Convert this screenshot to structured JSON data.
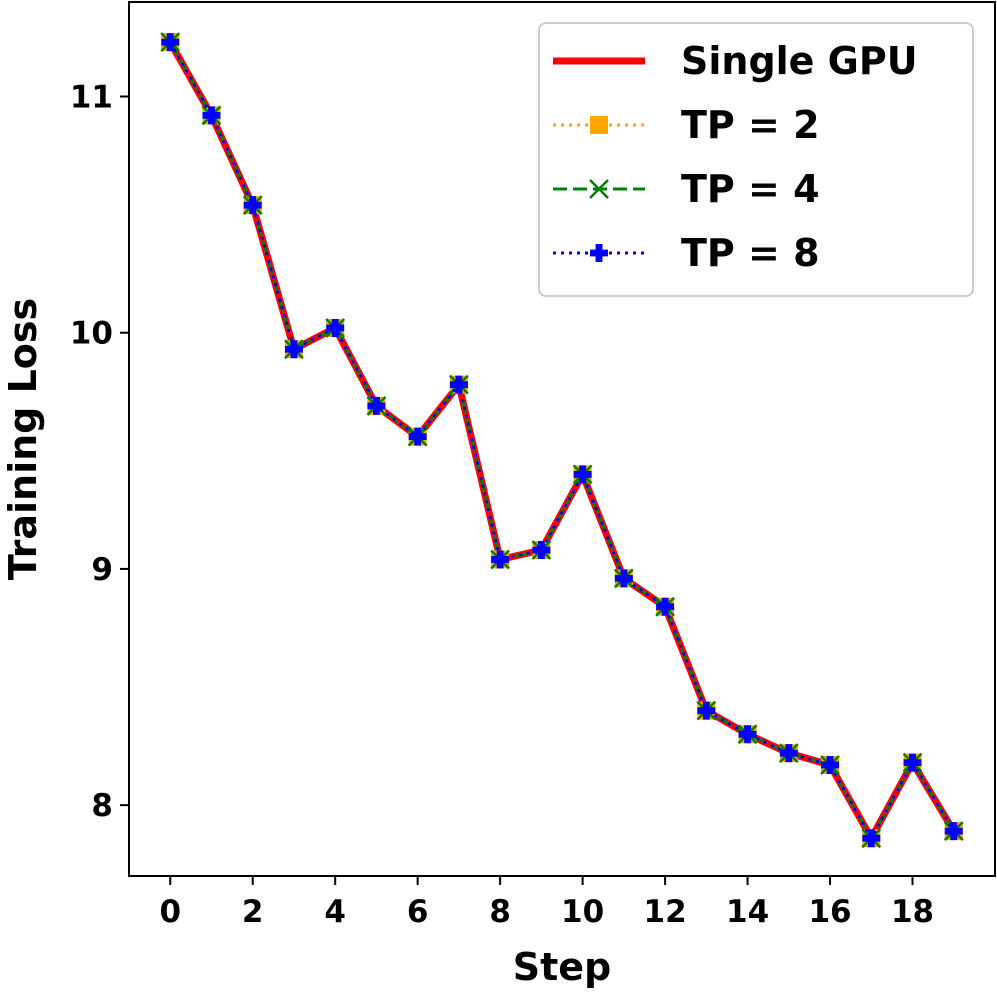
{
  "chart_data": {
    "type": "line",
    "title": "",
    "xlabel": "Step",
    "ylabel": "Training Loss",
    "xlim": [
      -1.0,
      20.0
    ],
    "ylim": [
      7.7,
      11.4
    ],
    "xticks": [
      0,
      2,
      4,
      6,
      8,
      10,
      12,
      14,
      16,
      18
    ],
    "xtick_labels": [
      "0",
      "2",
      "4",
      "6",
      "8",
      "10",
      "12",
      "14",
      "16",
      "18"
    ],
    "yticks": [
      8,
      9,
      10,
      11
    ],
    "ytick_labels": [
      "8",
      "9",
      "10",
      "11"
    ],
    "grid": false,
    "legend_position": "top-right",
    "x": [
      0,
      1,
      2,
      3,
      4,
      5,
      6,
      7,
      8,
      9,
      10,
      11,
      12,
      13,
      14,
      15,
      16,
      17,
      18,
      19
    ],
    "series": [
      {
        "name": "Single GPU",
        "color": "#ff0000",
        "style": "solid",
        "marker": "none",
        "values": [
          11.23,
          10.92,
          10.54,
          9.93,
          10.02,
          9.69,
          9.56,
          9.78,
          9.04,
          9.08,
          9.4,
          8.96,
          8.84,
          8.4,
          8.3,
          8.22,
          8.17,
          7.86,
          8.18,
          7.89
        ]
      },
      {
        "name": "TP = 2",
        "color": "#ffa500",
        "style": "dotted",
        "marker": "square",
        "values": [
          11.23,
          10.92,
          10.54,
          9.93,
          10.02,
          9.69,
          9.56,
          9.78,
          9.04,
          9.08,
          9.4,
          8.96,
          8.84,
          8.4,
          8.3,
          8.22,
          8.17,
          7.86,
          8.18,
          7.89
        ]
      },
      {
        "name": "TP = 4",
        "color": "#008000",
        "style": "dashed",
        "marker": "x",
        "values": [
          11.23,
          10.92,
          10.54,
          9.93,
          10.02,
          9.69,
          9.56,
          9.78,
          9.04,
          9.08,
          9.4,
          8.96,
          8.84,
          8.4,
          8.3,
          8.22,
          8.17,
          7.86,
          8.18,
          7.89
        ]
      },
      {
        "name": "TP = 8",
        "color": "#0000ff",
        "style": "dotted",
        "marker": "plus",
        "values": [
          11.23,
          10.92,
          10.54,
          9.93,
          10.02,
          9.69,
          9.56,
          9.78,
          9.04,
          9.08,
          9.4,
          8.96,
          8.84,
          8.4,
          8.3,
          8.22,
          8.17,
          7.86,
          8.18,
          7.89
        ]
      }
    ]
  }
}
